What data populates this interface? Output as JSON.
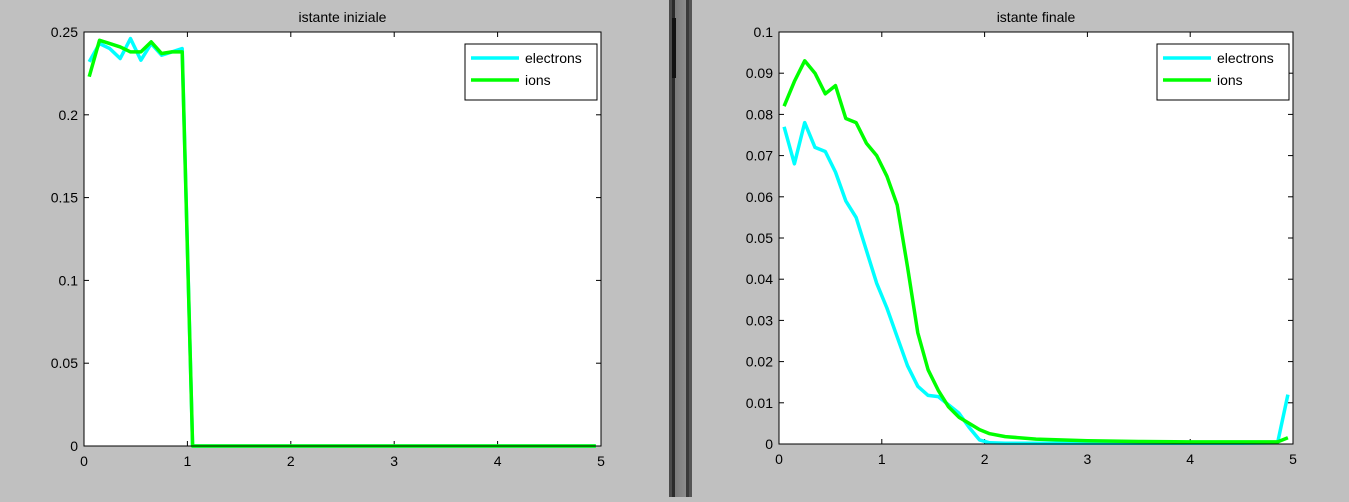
{
  "chart_data": [
    {
      "type": "line",
      "title": "istante iniziale",
      "xlim": [
        0,
        5
      ],
      "ylim": [
        0,
        0.25
      ],
      "xticks": [
        "0",
        "1",
        "2",
        "3",
        "4",
        "5"
      ],
      "yticks": [
        "0",
        "0.05",
        "0.1",
        "0.15",
        "0.2",
        "0.25"
      ],
      "legend_position": "top-right",
      "grid": false,
      "series": [
        {
          "name": "electrons",
          "color": "#00ffff",
          "x": [
            0.05,
            0.15,
            0.25,
            0.35,
            0.45,
            0.55,
            0.65,
            0.75,
            0.85,
            0.95,
            1.05,
            1.15,
            1.25,
            1.5,
            2,
            2.5,
            3,
            3.5,
            4,
            4.5,
            4.95
          ],
          "y": [
            0.232,
            0.243,
            0.24,
            0.234,
            0.246,
            0.233,
            0.243,
            0.236,
            0.238,
            0.24,
            0,
            0,
            0,
            0,
            0,
            0,
            0,
            0,
            0,
            0,
            0
          ]
        },
        {
          "name": "ions",
          "color": "#00ff00",
          "x": [
            0.05,
            0.15,
            0.25,
            0.35,
            0.45,
            0.55,
            0.65,
            0.75,
            0.85,
            0.95,
            1.05,
            1.15,
            1.25,
            1.5,
            2,
            2.5,
            3,
            3.5,
            4,
            4.5,
            4.95
          ],
          "y": [
            0.223,
            0.245,
            0.243,
            0.241,
            0.238,
            0.238,
            0.244,
            0.237,
            0.238,
            0.238,
            0,
            0,
            0,
            0,
            0,
            0,
            0,
            0,
            0,
            0,
            0
          ]
        }
      ]
    },
    {
      "type": "line",
      "title": "istante finale",
      "xlim": [
        0,
        5
      ],
      "ylim": [
        0,
        0.1
      ],
      "xticks": [
        "0",
        "1",
        "2",
        "3",
        "4",
        "5"
      ],
      "yticks": [
        "0",
        "0.01",
        "0.02",
        "0.03",
        "0.04",
        "0.05",
        "0.06",
        "0.07",
        "0.08",
        "0.09",
        "0.1"
      ],
      "legend_position": "top-right",
      "grid": false,
      "series": [
        {
          "name": "electrons",
          "color": "#00ffff",
          "x": [
            0.05,
            0.15,
            0.25,
            0.35,
            0.45,
            0.55,
            0.65,
            0.75,
            0.85,
            0.95,
            1.05,
            1.15,
            1.25,
            1.35,
            1.45,
            1.55,
            1.65,
            1.75,
            1.85,
            1.95,
            2.05,
            2.2,
            2.5,
            3,
            3.5,
            4,
            4.5,
            4.85,
            4.95
          ],
          "y": [
            0.077,
            0.068,
            0.078,
            0.072,
            0.071,
            0.066,
            0.059,
            0.055,
            0.047,
            0.039,
            0.033,
            0.026,
            0.019,
            0.014,
            0.0118,
            0.0115,
            0.0095,
            0.0075,
            0.004,
            0.001,
            0.0003,
            0.0002,
            0.0002,
            0.0002,
            0.0002,
            0.0002,
            0.0002,
            0.0003,
            0.012
          ]
        },
        {
          "name": "ions",
          "color": "#00ff00",
          "x": [
            0.05,
            0.15,
            0.25,
            0.35,
            0.45,
            0.55,
            0.65,
            0.75,
            0.85,
            0.95,
            1.05,
            1.15,
            1.25,
            1.35,
            1.45,
            1.55,
            1.65,
            1.75,
            1.85,
            1.95,
            2.05,
            2.2,
            2.5,
            3,
            3.5,
            4,
            4.5,
            4.85,
            4.95
          ],
          "y": [
            0.082,
            0.088,
            0.093,
            0.09,
            0.085,
            0.087,
            0.079,
            0.078,
            0.073,
            0.07,
            0.065,
            0.058,
            0.043,
            0.027,
            0.018,
            0.013,
            0.009,
            0.0065,
            0.005,
            0.0035,
            0.0025,
            0.0018,
            0.0012,
            0.0008,
            0.0006,
            0.0005,
            0.0005,
            0.0005,
            0.0015
          ]
        }
      ]
    }
  ]
}
